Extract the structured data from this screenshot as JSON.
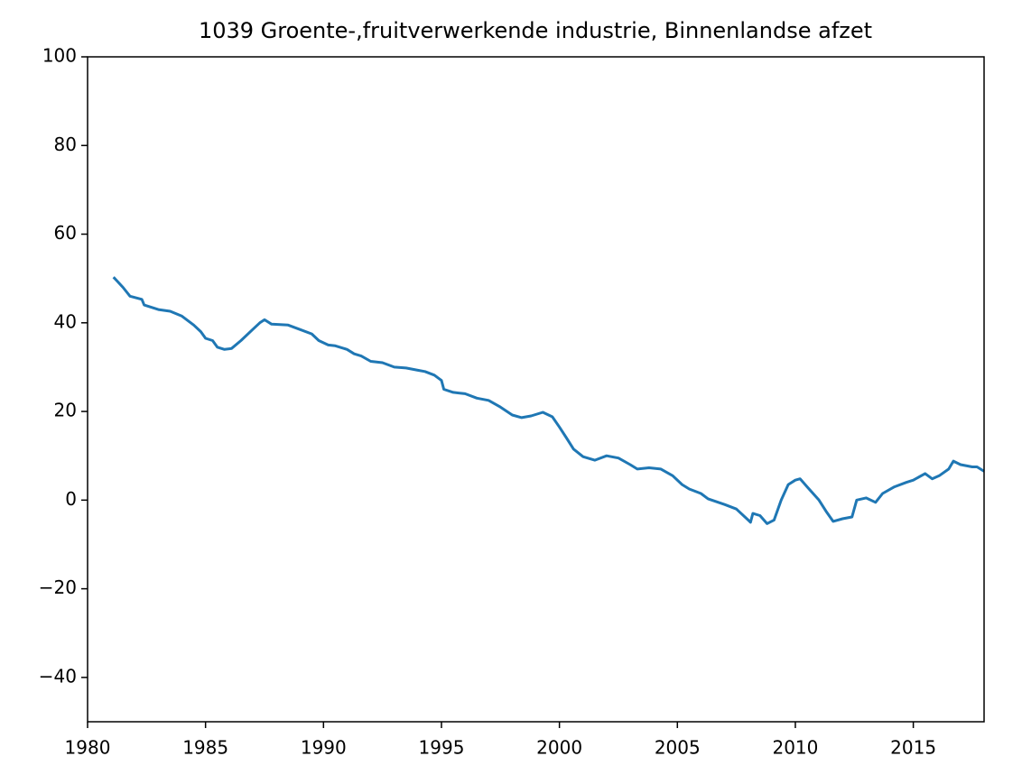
{
  "chart_data": {
    "type": "line",
    "title": "1039 Groente-,fruitverwerkende industrie, Binnenlandse afzet",
    "x": [
      1981.1,
      1981.5,
      1981.8,
      1982.3,
      1982.4,
      1983,
      1983.5,
      1984,
      1984.5,
      1984.8,
      1985,
      1985.3,
      1985.5,
      1985.8,
      1986.1,
      1986.5,
      1987,
      1987.3,
      1987.5,
      1987.8,
      1988.5,
      1989,
      1989.5,
      1989.8,
      1990.2,
      1990.5,
      1991,
      1991.3,
      1991.6,
      1992,
      1992.5,
      1993,
      1993.5,
      1994,
      1994.3,
      1994.7,
      1995,
      1995.1,
      1995.5,
      1996,
      1996.5,
      1997,
      1997.5,
      1998,
      1998.4,
      1998.8,
      1999.3,
      1999.7,
      2000,
      2000.3,
      2000.6,
      2001,
      2001.5,
      2002,
      2002.5,
      2003,
      2003.3,
      2003.8,
      2004.3,
      2004.8,
      2005.2,
      2005.5,
      2006,
      2006.3,
      2007,
      2007.5,
      2008,
      2008.1,
      2008.2,
      2008.5,
      2008.8,
      2009.1,
      2009.4,
      2009.7,
      2010,
      2010.2,
      2010.5,
      2011,
      2011.3,
      2011.6,
      2012,
      2012.4,
      2012.6,
      2013,
      2013.4,
      2013.7,
      2014.2,
      2014.7,
      2015,
      2015.5,
      2015.8,
      2016.1,
      2016.5,
      2016.7,
      2017,
      2017.5,
      2017.7,
      2018
    ],
    "series": [
      {
        "color": "#1f77b4",
        "values": [
          50.3,
          48,
          46,
          45.3,
          44,
          43,
          42.6,
          41.5,
          39.5,
          38,
          36.5,
          36,
          34.5,
          34,
          34.2,
          36,
          38.5,
          40,
          40.7,
          39.7,
          39.5,
          38.5,
          37.5,
          36,
          35,
          34.8,
          34,
          33,
          32.5,
          31.3,
          31,
          30,
          29.8,
          29.3,
          29,
          28.2,
          27,
          25,
          24.3,
          24,
          23,
          22.5,
          21,
          19.2,
          18.6,
          19,
          19.8,
          18.8,
          16.5,
          14,
          11.5,
          9.8,
          9,
          10,
          9.5,
          8,
          7,
          7.3,
          7,
          5.5,
          3.5,
          2.5,
          1.5,
          0.3,
          -1,
          -2,
          -4.5,
          -5,
          -3,
          -3.5,
          -5.3,
          -4.5,
          0,
          3.5,
          4.5,
          4.8,
          3,
          0,
          -2.5,
          -4.8,
          -4.2,
          -3.8,
          0,
          0.5,
          -0.5,
          1.5,
          3,
          4,
          4.5,
          6,
          4.8,
          5.5,
          7,
          8.8,
          8,
          7.5,
          7.5,
          6.5
        ]
      }
    ],
    "xlim": [
      1980,
      2018
    ],
    "xticks": [
      1980,
      1985,
      1990,
      1995,
      2000,
      2005,
      2010,
      2015
    ],
    "ylim": [
      -50,
      100
    ],
    "yticks": [
      {
        "value": -40,
        "label": "−40"
      },
      {
        "value": -20,
        "label": "−20"
      },
      0,
      20,
      40,
      60,
      80,
      100
    ],
    "grid": false
  }
}
